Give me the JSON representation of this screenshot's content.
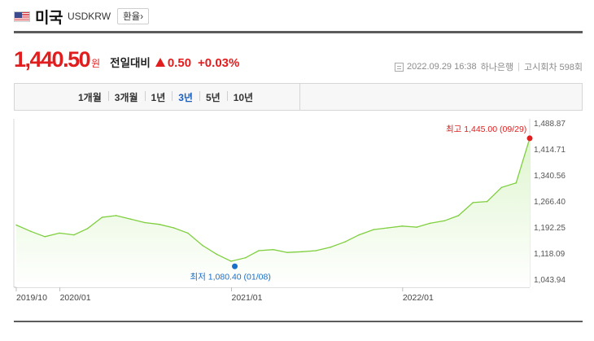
{
  "header": {
    "country": "미국",
    "code": "USDKRW",
    "rate_button": "환율›"
  },
  "quote": {
    "price": "1,440.50",
    "unit": "원",
    "compare_label": "전일대비",
    "change": "0.50",
    "change_pct": "+0.03%",
    "direction": "up",
    "up_color": "#e21d1d"
  },
  "meta": {
    "datetime": "2022.09.29 16:38",
    "bank": "하나은행",
    "notice": "고시회차 598회"
  },
  "tabs": [
    {
      "label": "1개월",
      "active": false
    },
    {
      "label": "3개월",
      "active": false
    },
    {
      "label": "1년",
      "active": false
    },
    {
      "label": "3년",
      "active": true
    },
    {
      "label": "5년",
      "active": false
    },
    {
      "label": "10년",
      "active": false
    }
  ],
  "chart_data": {
    "type": "area",
    "title": "",
    "xlabel": "",
    "ylabel": "",
    "y_ticks": [
      "1,488.87",
      "1,414.71",
      "1,340.56",
      "1,266.40",
      "1,192.25",
      "1,118.09",
      "1,043.94"
    ],
    "x_ticks": [
      "2019/10",
      "2020/01",
      "2021/01",
      "2022/01"
    ],
    "x_range": [
      "2019-09-30",
      "2022-09-29"
    ],
    "ylim": [
      1043.94,
      1488.87
    ],
    "y_axis_position": "right",
    "grid": false,
    "line_color": "#7fcf3f",
    "fill_color": "#dff5cf",
    "x": [
      "2019-09-30",
      "2019-10-31",
      "2019-11-30",
      "2019-12-31",
      "2020-01-31",
      "2020-02-29",
      "2020-03-31",
      "2020-04-30",
      "2020-05-31",
      "2020-06-30",
      "2020-07-31",
      "2020-08-31",
      "2020-09-30",
      "2020-10-31",
      "2020-11-30",
      "2020-12-31",
      "2021-01-31",
      "2021-02-28",
      "2021-03-31",
      "2021-04-30",
      "2021-05-31",
      "2021-06-30",
      "2021-07-31",
      "2021-08-31",
      "2021-09-30",
      "2021-10-31",
      "2021-11-30",
      "2021-12-31",
      "2022-01-31",
      "2022-02-28",
      "2022-03-31",
      "2022-04-30",
      "2022-05-31",
      "2022-06-30",
      "2022-07-31",
      "2022-08-31",
      "2022-09-29"
    ],
    "values": [
      1198,
      1180,
      1165,
      1175,
      1170,
      1188,
      1220,
      1225,
      1215,
      1205,
      1200,
      1190,
      1175,
      1140,
      1115,
      1095,
      1105,
      1125,
      1128,
      1120,
      1122,
      1125,
      1135,
      1150,
      1170,
      1185,
      1190,
      1195,
      1192,
      1203,
      1210,
      1225,
      1262,
      1265,
      1305,
      1318,
      1445
    ],
    "annotations": [
      {
        "label": "최고 1,445.00 (09/29)",
        "x": "2022-09-29",
        "y": 1445.0,
        "kind": "max",
        "color": "#e21d1d"
      },
      {
        "label": "최저 1,080.40 (01/08)",
        "x": "2021-01-08",
        "y": 1080.4,
        "kind": "min",
        "color": "#1a6fc9"
      }
    ]
  }
}
